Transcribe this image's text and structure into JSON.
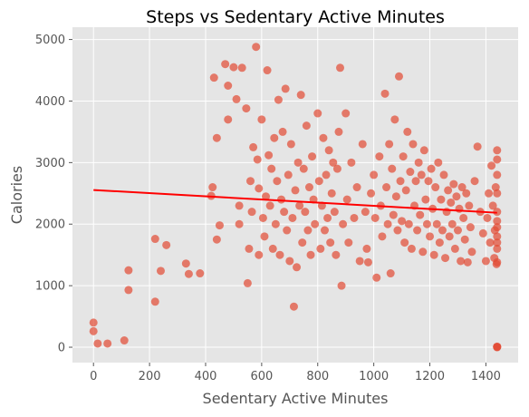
{
  "chart_data": {
    "type": "scatter",
    "title": "Steps vs Sedentary Active Minutes",
    "xlabel": "Sedentary Active Minutes",
    "ylabel": "Calories",
    "xlim": [
      -75,
      1515
    ],
    "ylim": [
      -250,
      5200
    ],
    "xticks": [
      0,
      200,
      400,
      600,
      800,
      1000,
      1200,
      1400
    ],
    "yticks": [
      0,
      1000,
      2000,
      3000,
      4000,
      5000
    ],
    "grid": true,
    "colors": {
      "points": "#E24A33",
      "trendline": "#FF0000",
      "plot_background": "#E5E5E5",
      "grid": "#FFFFFF"
    },
    "trendline": {
      "x": [
        0,
        1440
      ],
      "y": [
        2555,
        2185
      ]
    },
    "points": [
      [
        0,
        400
      ],
      [
        0,
        260
      ],
      [
        15,
        60
      ],
      [
        50,
        60
      ],
      [
        110,
        110
      ],
      [
        125,
        1250
      ],
      [
        125,
        930
      ],
      [
        220,
        1760
      ],
      [
        220,
        740
      ],
      [
        240,
        1240
      ],
      [
        260,
        1660
      ],
      [
        330,
        1360
      ],
      [
        340,
        1190
      ],
      [
        380,
        1200
      ],
      [
        420,
        2460
      ],
      [
        425,
        2600
      ],
      [
        430,
        4380
      ],
      [
        440,
        1750
      ],
      [
        440,
        3400
      ],
      [
        450,
        1980
      ],
      [
        470,
        4600
      ],
      [
        480,
        4250
      ],
      [
        480,
        3700
      ],
      [
        500,
        4550
      ],
      [
        510,
        4030
      ],
      [
        520,
        2300
      ],
      [
        520,
        2000
      ],
      [
        530,
        4540
      ],
      [
        545,
        3880
      ],
      [
        550,
        1040
      ],
      [
        555,
        1600
      ],
      [
        560,
        2700
      ],
      [
        565,
        2200
      ],
      [
        570,
        3250
      ],
      [
        580,
        4880
      ],
      [
        585,
        3050
      ],
      [
        590,
        2580
      ],
      [
        590,
        1500
      ],
      [
        600,
        3700
      ],
      [
        605,
        2100
      ],
      [
        610,
        1800
      ],
      [
        615,
        2450
      ],
      [
        620,
        4500
      ],
      [
        625,
        3120
      ],
      [
        630,
        2300
      ],
      [
        635,
        2900
      ],
      [
        640,
        1600
      ],
      [
        645,
        3400
      ],
      [
        650,
        2000
      ],
      [
        655,
        2700
      ],
      [
        660,
        4020
      ],
      [
        665,
        1500
      ],
      [
        670,
        2400
      ],
      [
        675,
        3500
      ],
      [
        680,
        2200
      ],
      [
        685,
        4200
      ],
      [
        690,
        1900
      ],
      [
        695,
        2800
      ],
      [
        700,
        1400
      ],
      [
        705,
        3300
      ],
      [
        710,
        2100
      ],
      [
        715,
        660
      ],
      [
        720,
        2550
      ],
      [
        725,
        1300
      ],
      [
        730,
        3000
      ],
      [
        735,
        2300
      ],
      [
        740,
        4100
      ],
      [
        745,
        1700
      ],
      [
        750,
        2900
      ],
      [
        755,
        2200
      ],
      [
        760,
        3600
      ],
      [
        765,
        1900
      ],
      [
        770,
        2600
      ],
      [
        775,
        1500
      ],
      [
        780,
        3100
      ],
      [
        785,
        2400
      ],
      [
        790,
        2000
      ],
      [
        800,
        3800
      ],
      [
        805,
        2700
      ],
      [
        810,
        1600
      ],
      [
        815,
        2300
      ],
      [
        820,
        3400
      ],
      [
        825,
        1900
      ],
      [
        830,
        2800
      ],
      [
        835,
        2100
      ],
      [
        840,
        3200
      ],
      [
        845,
        1700
      ],
      [
        850,
        2500
      ],
      [
        855,
        3000
      ],
      [
        860,
        2200
      ],
      [
        865,
        1500
      ],
      [
        870,
        2900
      ],
      [
        875,
        3500
      ],
      [
        880,
        4540
      ],
      [
        885,
        1000
      ],
      [
        890,
        2000
      ],
      [
        900,
        3800
      ],
      [
        905,
        2400
      ],
      [
        910,
        1700
      ],
      [
        920,
        3000
      ],
      [
        930,
        2100
      ],
      [
        940,
        2600
      ],
      [
        950,
        1400
      ],
      [
        960,
        3300
      ],
      [
        970,
        2200
      ],
      [
        975,
        1600
      ],
      [
        980,
        1380
      ],
      [
        990,
        2500
      ],
      [
        1000,
        2800
      ],
      [
        1005,
        2100
      ],
      [
        1010,
        1130
      ],
      [
        1020,
        3100
      ],
      [
        1025,
        2300
      ],
      [
        1030,
        1800
      ],
      [
        1040,
        4120
      ],
      [
        1045,
        2600
      ],
      [
        1050,
        2000
      ],
      [
        1055,
        3300
      ],
      [
        1060,
        1200
      ],
      [
        1065,
        2900
      ],
      [
        1070,
        2150
      ],
      [
        1075,
        3700
      ],
      [
        1080,
        2450
      ],
      [
        1085,
        1900
      ],
      [
        1090,
        4400
      ],
      [
        1095,
        2700
      ],
      [
        1100,
        2050
      ],
      [
        1105,
        3100
      ],
      [
        1110,
        1700
      ],
      [
        1115,
        2550
      ],
      [
        1120,
        3500
      ],
      [
        1125,
        2000
      ],
      [
        1130,
        2850
      ],
      [
        1135,
        1600
      ],
      [
        1140,
        3300
      ],
      [
        1145,
        2300
      ],
      [
        1150,
        2700
      ],
      [
        1155,
        1900
      ],
      [
        1160,
        3000
      ],
      [
        1165,
        2150
      ],
      [
        1170,
        2800
      ],
      [
        1175,
        1550
      ],
      [
        1180,
        3200
      ],
      [
        1185,
        2400
      ],
      [
        1190,
        2000
      ],
      [
        1195,
        2700
      ],
      [
        1200,
        1800
      ],
      [
        1205,
        2900
      ],
      [
        1210,
        2250
      ],
      [
        1215,
        1500
      ],
      [
        1220,
        2600
      ],
      [
        1225,
        2000
      ],
      [
        1230,
        3000
      ],
      [
        1235,
        1700
      ],
      [
        1240,
        2400
      ],
      [
        1245,
        1900
      ],
      [
        1250,
        2800
      ],
      [
        1255,
        1450
      ],
      [
        1260,
        2200
      ],
      [
        1265,
        2550
      ],
      [
        1270,
        1800
      ],
      [
        1275,
        2350
      ],
      [
        1280,
        2000
      ],
      [
        1285,
        2650
      ],
      [
        1290,
        1600
      ],
      [
        1295,
        2450
      ],
      [
        1300,
        1900
      ],
      [
        1305,
        2250
      ],
      [
        1310,
        1400
      ],
      [
        1315,
        2600
      ],
      [
        1320,
        2100
      ],
      [
        1325,
        1750
      ],
      [
        1330,
        2500
      ],
      [
        1335,
        1380
      ],
      [
        1340,
        2300
      ],
      [
        1345,
        1950
      ],
      [
        1350,
        1550
      ],
      [
        1360,
        2700
      ],
      [
        1370,
        3260
      ],
      [
        1380,
        2200
      ],
      [
        1390,
        1850
      ],
      [
        1400,
        1400
      ],
      [
        1405,
        2100
      ],
      [
        1410,
        2500
      ],
      [
        1415,
        1700
      ],
      [
        1420,
        2950
      ],
      [
        1425,
        2300
      ],
      [
        1430,
        1450
      ],
      [
        1432,
        1900
      ],
      [
        1435,
        2600
      ],
      [
        1438,
        1350
      ],
      [
        1440,
        3200
      ],
      [
        1440,
        2050
      ],
      [
        1440,
        1800
      ],
      [
        1440,
        1600
      ],
      [
        1440,
        1380
      ],
      [
        1440,
        2500
      ],
      [
        1440,
        2200
      ],
      [
        1440,
        1950
      ],
      [
        1440,
        2800
      ],
      [
        1440,
        3050
      ],
      [
        1440,
        1700
      ],
      [
        1440,
        0
      ],
      [
        1440,
        5
      ],
      [
        1440,
        10
      ]
    ]
  }
}
